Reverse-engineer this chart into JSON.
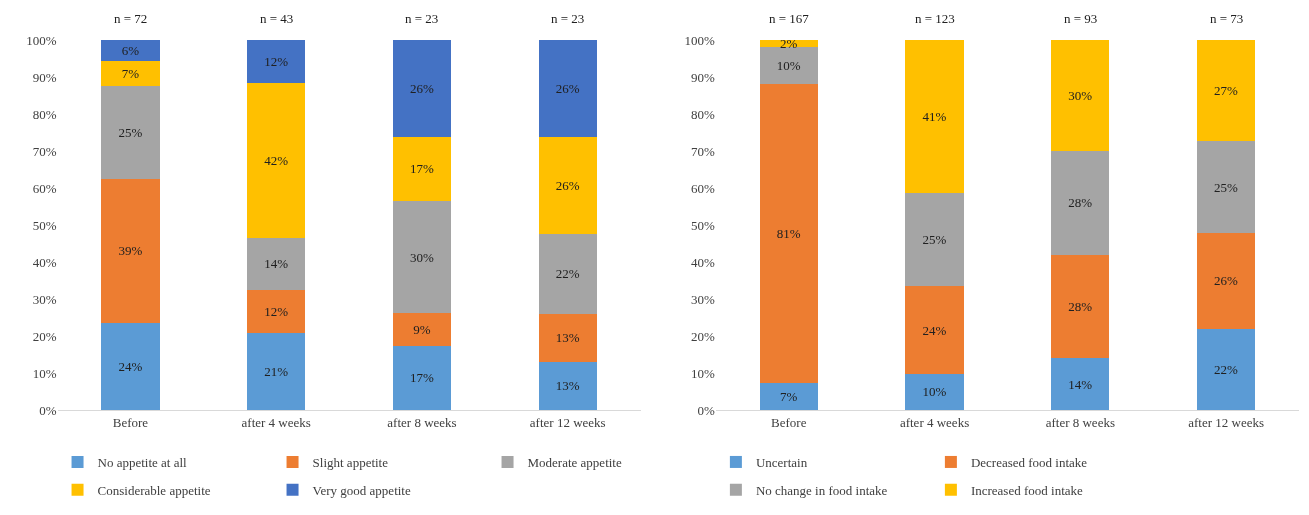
{
  "chart_data": [
    {
      "type": "bar",
      "stacked": true,
      "categories": [
        "Before",
        "after 4 weeks",
        "after 8 weeks",
        "after 12 weeks"
      ],
      "ylim": [
        0,
        100
      ],
      "yticks": [
        {
          "value": 0,
          "label": "0%"
        },
        {
          "value": 10,
          "label": "10%"
        },
        {
          "value": 20,
          "label": "20%"
        },
        {
          "value": 30,
          "label": "30%"
        },
        {
          "value": 40,
          "label": "40%"
        },
        {
          "value": 50,
          "label": "50%"
        },
        {
          "value": 60,
          "label": "60%"
        },
        {
          "value": 70,
          "label": "70%"
        },
        {
          "value": 80,
          "label": "80%"
        },
        {
          "value": 90,
          "label": "90%"
        },
        {
          "value": 100,
          "label": "100%"
        }
      ],
      "grid": false,
      "legend": "bottom",
      "series": [
        {
          "name": "No appetite at all",
          "color": "#5b9bd5",
          "values": [
            23.6,
            20.9,
            17.4,
            13.0
          ],
          "value_labels": [
            "24%",
            "21%",
            "17%",
            "13%"
          ]
        },
        {
          "name": "Slight appetite",
          "color": "#ed7d31",
          "values": [
            38.9,
            11.6,
            8.7,
            13.0
          ],
          "value_labels": [
            "39%",
            "12%",
            "9%",
            "13%"
          ]
        },
        {
          "name": "Moderate appetite",
          "color": "#a5a5a5",
          "values": [
            25.0,
            14.0,
            30.4,
            21.7
          ],
          "value_labels": [
            "25%",
            "14%",
            "30%",
            "22%"
          ]
        },
        {
          "name": "Considerable appetite",
          "color": "#ffc000",
          "values": [
            6.9,
            41.9,
            17.4,
            26.1
          ],
          "value_labels": [
            "7%",
            "42%",
            "17%",
            "26%"
          ]
        },
        {
          "name": "Very good appetite",
          "color": "#4472c4",
          "values": [
            5.6,
            11.6,
            26.1,
            26.1
          ],
          "value_labels": [
            "6%",
            "12%",
            "26%",
            "26%"
          ]
        }
      ],
      "annotations": [
        {
          "text": "n = 72",
          "x": "Before",
          "y": 100
        },
        {
          "text": "n = 43",
          "x": "after 4 weeks",
          "y": 100
        },
        {
          "text": "n = 23",
          "x": "after 8 weeks",
          "y": 100
        },
        {
          "text": "n = 23",
          "x": "after 12 weeks",
          "y": 100
        }
      ]
    },
    {
      "type": "bar",
      "stacked": true,
      "categories": [
        "Before",
        "after 4 weeks",
        "after 8 weeks",
        "after 12 weeks"
      ],
      "ylim": [
        0,
        100
      ],
      "yticks": [
        {
          "value": 0,
          "label": "0%"
        },
        {
          "value": 10,
          "label": "10%"
        },
        {
          "value": 20,
          "label": "20%"
        },
        {
          "value": 30,
          "label": "30%"
        },
        {
          "value": 40,
          "label": "40%"
        },
        {
          "value": 50,
          "label": "50%"
        },
        {
          "value": 60,
          "label": "60%"
        },
        {
          "value": 70,
          "label": "70%"
        },
        {
          "value": 80,
          "label": "80%"
        },
        {
          "value": 90,
          "label": "90%"
        },
        {
          "value": 100,
          "label": "100%"
        }
      ],
      "grid": false,
      "legend": "bottom",
      "series": [
        {
          "name": "Uncertain",
          "color": "#5b9bd5",
          "values": [
            7.2,
            9.8,
            14.0,
            21.9
          ],
          "value_labels": [
            "7%",
            "10%",
            "14%",
            "22%"
          ]
        },
        {
          "name": "Decreased food intake",
          "color": "#ed7d31",
          "values": [
            80.8,
            23.6,
            28.0,
            26.0
          ],
          "value_labels": [
            "81%",
            "24%",
            "28%",
            "26%"
          ]
        },
        {
          "name": "No change in food intake",
          "color": "#a5a5a5",
          "values": [
            10.2,
            25.2,
            28.0,
            24.7
          ],
          "value_labels": [
            "10%",
            "25%",
            "28%",
            "25%"
          ]
        },
        {
          "name": "Increased food intake",
          "color": "#ffc000",
          "values": [
            1.8,
            41.4,
            30.0,
            27.4
          ],
          "value_labels": [
            "2%",
            "41%",
            "30%",
            "27%"
          ]
        }
      ],
      "annotations": [
        {
          "text": "n = 167",
          "x": "Before",
          "y": 100
        },
        {
          "text": "n = 123",
          "x": "after 4 weeks",
          "y": 100
        },
        {
          "text": "n = 93",
          "x": "after 8 weeks",
          "y": 100
        },
        {
          "text": "n = 73",
          "x": "after 12 weeks",
          "y": 100
        }
      ]
    }
  ]
}
